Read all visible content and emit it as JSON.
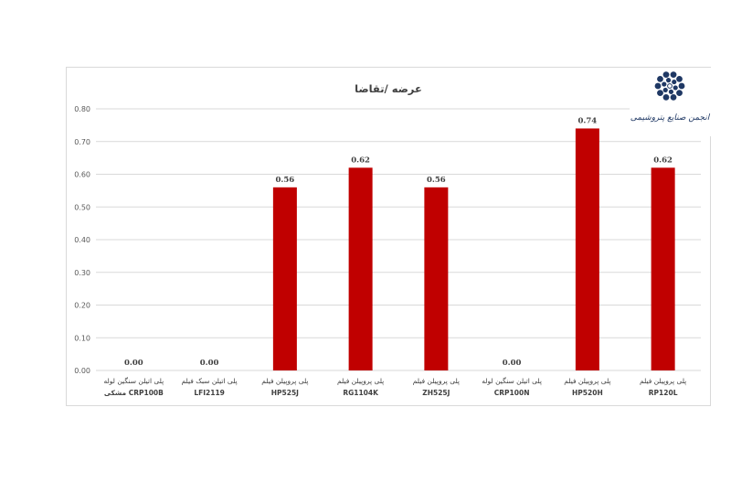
{
  "chart_data": {
    "type": "bar",
    "title": "عرضه /تقاضا",
    "categories": [
      {
        "line1": "پلی اتیلن سنگین لوله",
        "line2": "CRP100B مشکی"
      },
      {
        "line1": "پلی اتیلن سبک فیلم",
        "line2": "LFI2119"
      },
      {
        "line1": "پلی پروپیلن فیلم",
        "line2": "HP525J"
      },
      {
        "line1": "پلی پروپیلن فیلم",
        "line2": "RG1104K"
      },
      {
        "line1": "پلی پروپیلن فیلم",
        "line2": "ZH525J"
      },
      {
        "line1": "پلی اتیلن سنگین لوله",
        "line2": "CRP100N"
      },
      {
        "line1": "پلی پروپیلن فیلم",
        "line2": "HP520H"
      },
      {
        "line1": "پلی پروپیلن فیلم",
        "line2": "RP120L"
      }
    ],
    "values": [
      0.0,
      0.0,
      0.56,
      0.62,
      0.56,
      0.0,
      0.74,
      0.62
    ],
    "value_labels": [
      "0.00",
      "0.00",
      "0.56",
      "0.62",
      "0.56",
      "0.00",
      "0.74",
      "0.62"
    ],
    "ylim": [
      0,
      0.8
    ],
    "yticks": [
      "0.00",
      "0.10",
      "0.20",
      "0.30",
      "0.40",
      "0.50",
      "0.60",
      "0.70",
      "0.80"
    ],
    "grid": true,
    "bar_color": "#c00000",
    "grid_color": "#d9d9d9"
  },
  "logo": {
    "text": "انجمن صنایع پتروشیمی",
    "color": "#1f3864"
  }
}
